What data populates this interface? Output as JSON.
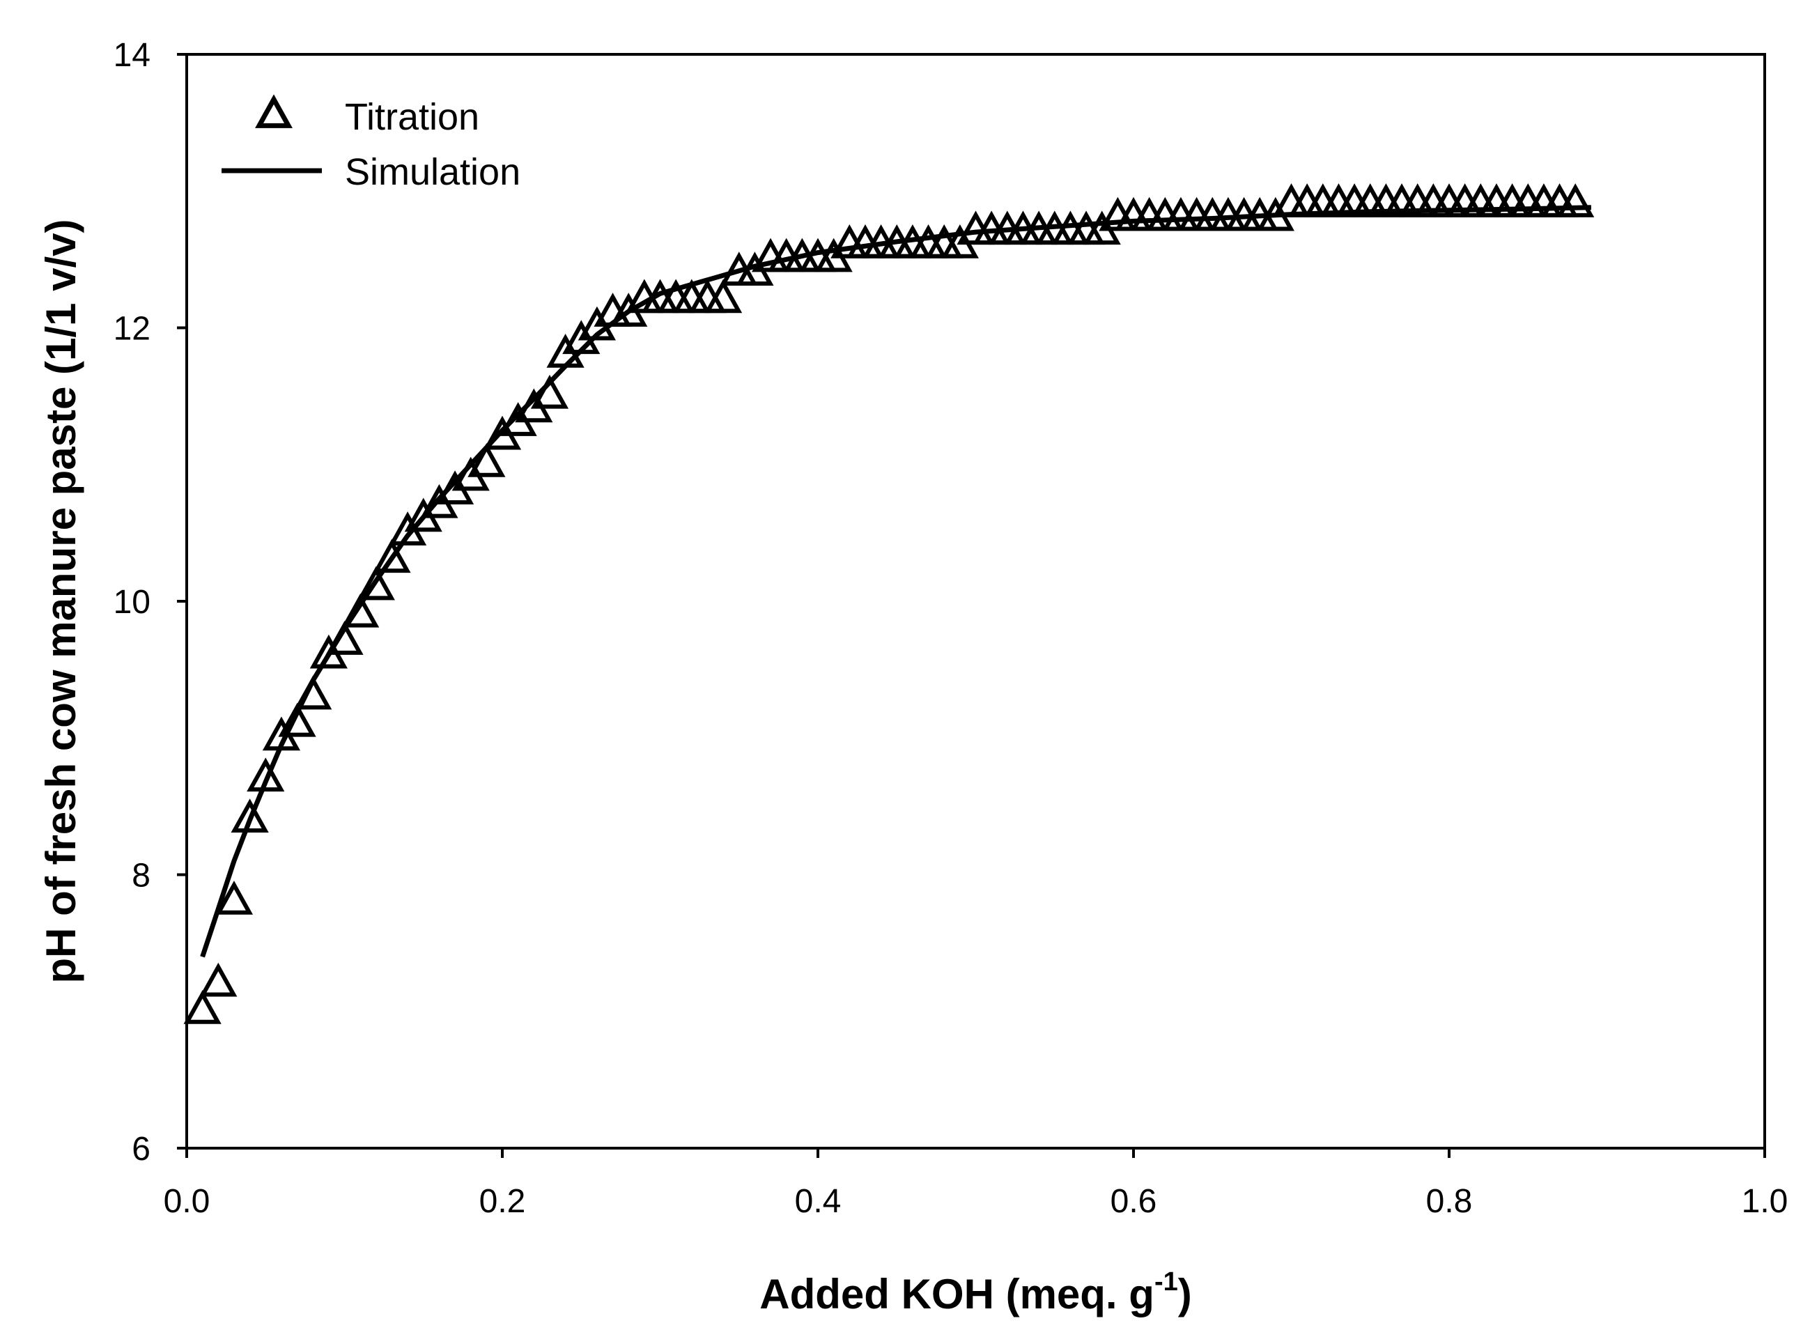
{
  "chart_data": {
    "type": "scatter",
    "title": "",
    "xlabel": "Added KOH (meq. g",
    "xlabel_sup": "-1",
    "xlabel_close": ")",
    "ylabel": "pH of fresh cow manure paste (1/1 v/v)",
    "xlim": [
      0.0,
      1.0
    ],
    "ylim": [
      6,
      14
    ],
    "xticks": [
      "0.0",
      "0.2",
      "0.4",
      "0.6",
      "0.8",
      "1.0"
    ],
    "yticks": [
      "6",
      "8",
      "10",
      "12",
      "14"
    ],
    "grid": false,
    "legend_position": "top-left",
    "colors": {
      "axis": "#000000",
      "series": "#000000",
      "background": "#ffffff"
    },
    "series": [
      {
        "name": "Titration",
        "style": "open-triangle-marker",
        "x": [
          0.01,
          0.02,
          0.03,
          0.04,
          0.05,
          0.06,
          0.07,
          0.08,
          0.09,
          0.1,
          0.11,
          0.12,
          0.13,
          0.14,
          0.15,
          0.16,
          0.17,
          0.18,
          0.19,
          0.2,
          0.21,
          0.22,
          0.23,
          0.24,
          0.25,
          0.26,
          0.27,
          0.28,
          0.29,
          0.3,
          0.31,
          0.32,
          0.33,
          0.34,
          0.35,
          0.36,
          0.37,
          0.38,
          0.39,
          0.4,
          0.41,
          0.42,
          0.43,
          0.44,
          0.45,
          0.46,
          0.47,
          0.48,
          0.49,
          0.5,
          0.51,
          0.52,
          0.53,
          0.54,
          0.55,
          0.56,
          0.57,
          0.58,
          0.59,
          0.6,
          0.61,
          0.62,
          0.63,
          0.64,
          0.65,
          0.66,
          0.67,
          0.68,
          0.69,
          0.7,
          0.71,
          0.72,
          0.73,
          0.74,
          0.75,
          0.76,
          0.77,
          0.78,
          0.79,
          0.8,
          0.81,
          0.82,
          0.83,
          0.84,
          0.85,
          0.86,
          0.87,
          0.88
        ],
        "y": [
          7.0,
          7.2,
          7.8,
          8.4,
          8.7,
          9.0,
          9.1,
          9.3,
          9.6,
          9.7,
          9.9,
          10.1,
          10.3,
          10.5,
          10.6,
          10.7,
          10.8,
          10.9,
          11.0,
          11.2,
          11.3,
          11.4,
          11.5,
          11.8,
          11.9,
          12.0,
          12.1,
          12.1,
          12.2,
          12.2,
          12.2,
          12.2,
          12.2,
          12.2,
          12.4,
          12.4,
          12.5,
          12.5,
          12.5,
          12.5,
          12.5,
          12.6,
          12.6,
          12.6,
          12.6,
          12.6,
          12.6,
          12.6,
          12.6,
          12.7,
          12.7,
          12.7,
          12.7,
          12.7,
          12.7,
          12.7,
          12.7,
          12.7,
          12.8,
          12.8,
          12.8,
          12.8,
          12.8,
          12.8,
          12.8,
          12.8,
          12.8,
          12.8,
          12.8,
          12.9,
          12.9,
          12.9,
          12.9,
          12.9,
          12.9,
          12.9,
          12.9,
          12.9,
          12.9,
          12.9,
          12.9,
          12.9,
          12.9,
          12.9,
          12.9,
          12.9,
          12.9,
          12.9
        ]
      },
      {
        "name": "Simulation",
        "style": "solid-line",
        "x": [
          0.01,
          0.02,
          0.03,
          0.04,
          0.05,
          0.06,
          0.08,
          0.1,
          0.12,
          0.14,
          0.16,
          0.18,
          0.2,
          0.22,
          0.24,
          0.26,
          0.28,
          0.3,
          0.33,
          0.36,
          0.4,
          0.45,
          0.5,
          0.55,
          0.6,
          0.65,
          0.7,
          0.75,
          0.8,
          0.85,
          0.89
        ],
        "y": [
          7.4,
          7.75,
          8.1,
          8.4,
          8.68,
          8.95,
          9.42,
          9.8,
          10.15,
          10.48,
          10.75,
          11.0,
          11.25,
          11.48,
          11.72,
          11.95,
          12.12,
          12.25,
          12.35,
          12.45,
          12.55,
          12.63,
          12.7,
          12.74,
          12.78,
          12.8,
          12.83,
          12.85,
          12.86,
          12.87,
          12.88
        ]
      }
    ]
  }
}
